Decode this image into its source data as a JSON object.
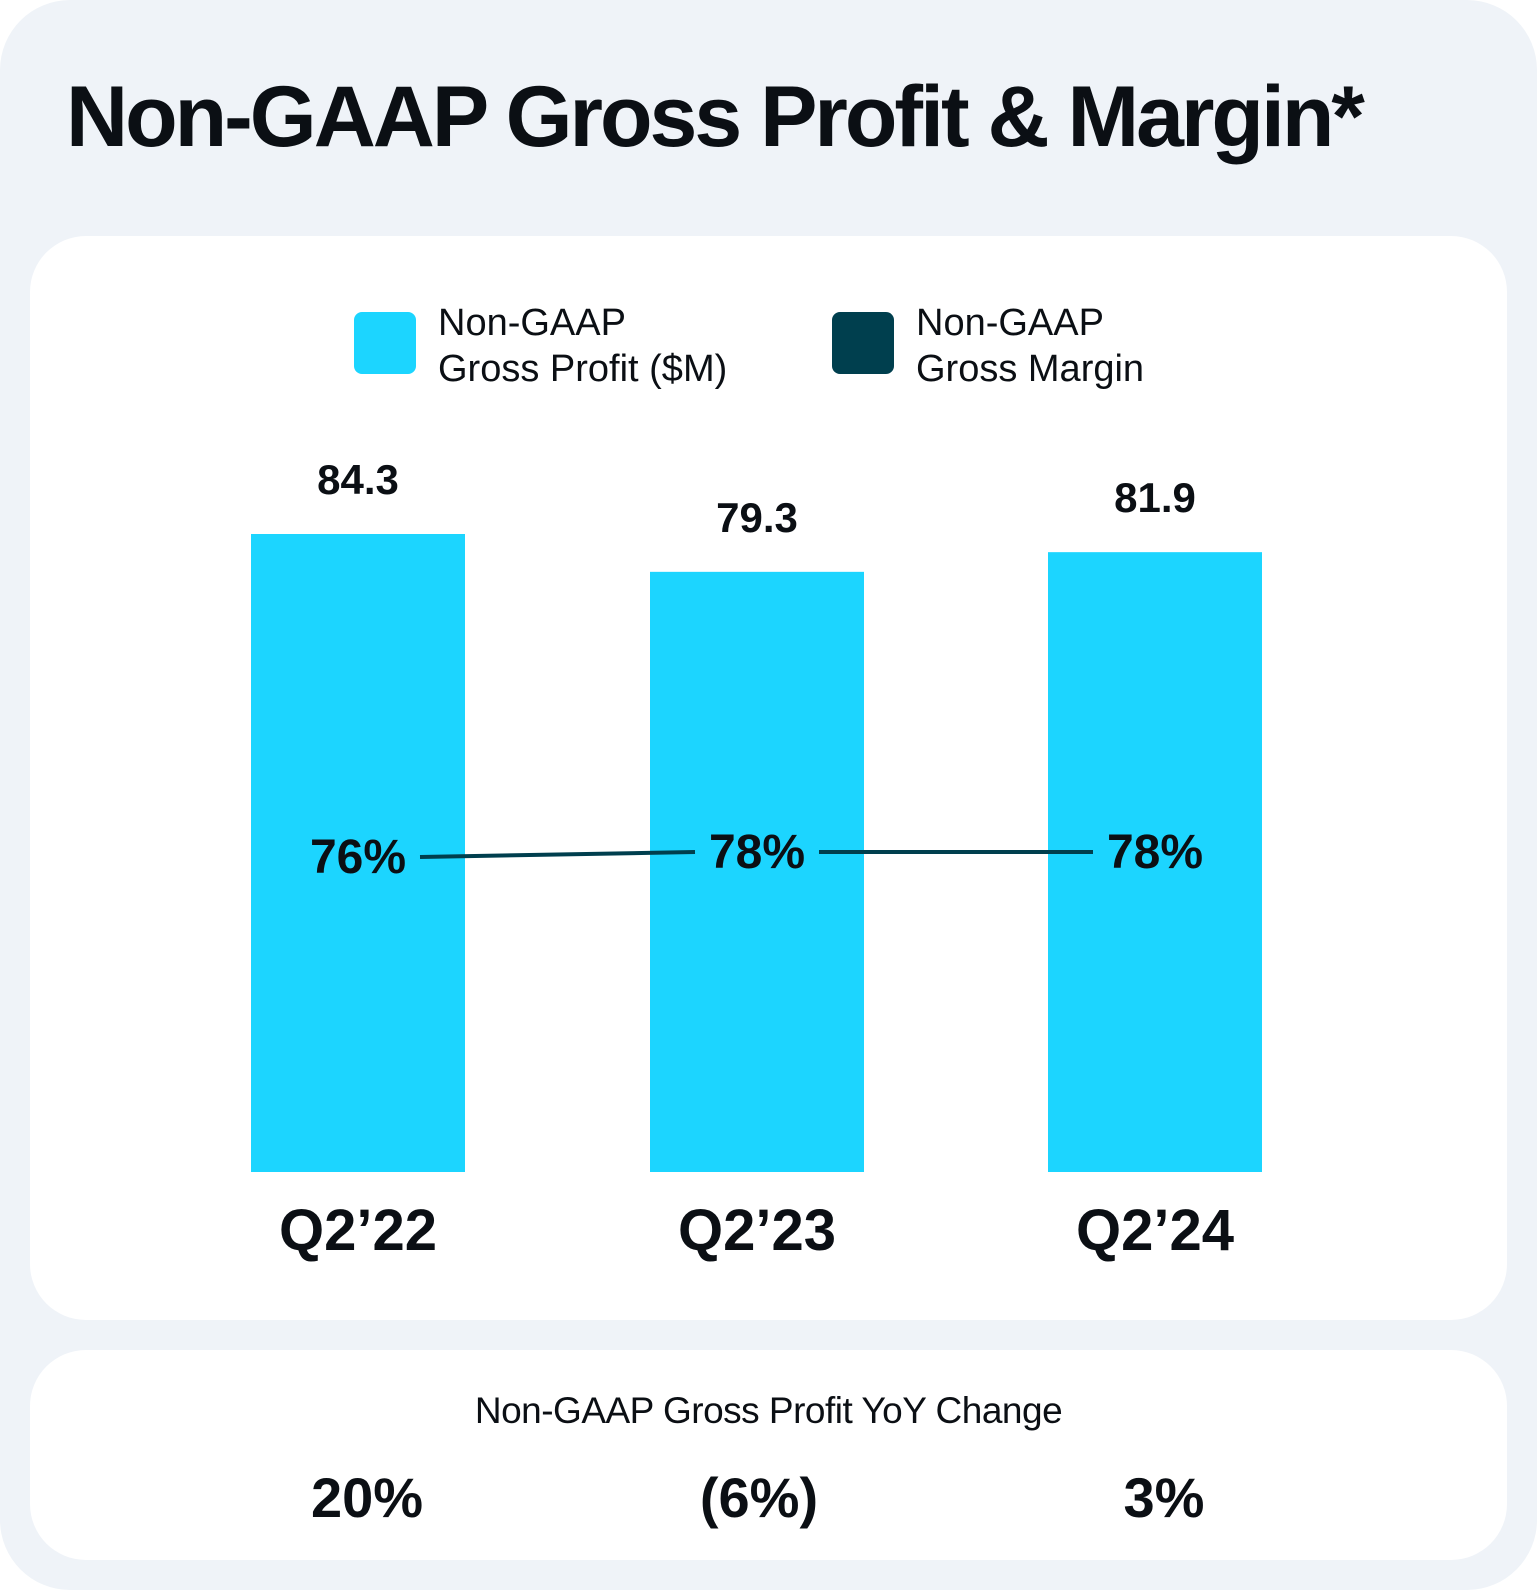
{
  "title": "Non-GAAP Gross Profit & Margin*",
  "colors": {
    "profit": "#1cd5ff",
    "margin": "#003f4e",
    "background": "#eff3f8",
    "card": "#ffffff"
  },
  "legend": {
    "profit_label": "Non-GAAP\nGross Profit ($M)",
    "margin_label": "Non-GAAP\nGross Margin"
  },
  "chart_data": {
    "type": "bar",
    "title": "Non-GAAP Gross Profit & Margin*",
    "categories": [
      "Q2’22",
      "Q2’23",
      "Q2’24"
    ],
    "series": [
      {
        "name": "Non-GAAP Gross Profit ($M)",
        "type": "bar",
        "values": [
          84.3,
          79.3,
          81.9
        ],
        "labels": [
          "84.3",
          "79.3",
          "81.9"
        ]
      },
      {
        "name": "Non-GAAP Gross Margin",
        "type": "line",
        "values": [
          76,
          78,
          78
        ],
        "labels": [
          "76%",
          "78%",
          "78%"
        ]
      }
    ],
    "ylim": [
      0,
      84.3
    ],
    "margin_ylim": [
      0,
      100
    ],
    "xlabel": "",
    "ylabel": ""
  },
  "yoy": {
    "title": "Non-GAAP Gross Profit YoY Change",
    "values": [
      "20%",
      "(6%)",
      "3%"
    ]
  }
}
